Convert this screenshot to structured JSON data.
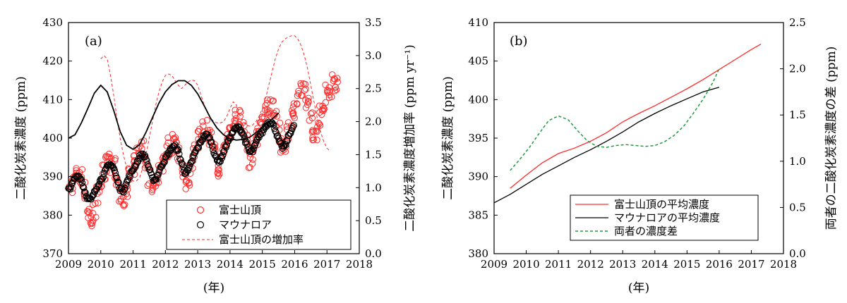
{
  "colors": {
    "fuji": "#ff2a2a",
    "mauna": "#000000",
    "diff": "#1e9a3c"
  },
  "chart_data": [
    {
      "type": "scatter",
      "panel_label": "(a)",
      "xlabel": "(年)",
      "ylabel": "二酸化炭素濃度 (ppm)",
      "ylabel2": "二酸化炭素濃度増加率 (ppm yr⁻¹)",
      "xlim": [
        2009,
        2018
      ],
      "ylim": [
        370,
        430
      ],
      "ylim2": [
        0,
        3.5
      ],
      "xticks": [
        "2009",
        "2010",
        "2011",
        "2012",
        "2013",
        "2014",
        "2015",
        "2016",
        "2017",
        "2018"
      ],
      "yticks": [
        "370",
        "380",
        "390",
        "400",
        "410",
        "420",
        "430"
      ],
      "yticks2": [
        "0.0",
        "0.5",
        "1.0",
        "1.5",
        "2.0",
        "2.5",
        "3.0",
        "3.5"
      ],
      "legend_position": "bottom-right",
      "series": [
        {
          "name": "富士山頂",
          "marker": "open-circle",
          "axis": "left",
          "x": [
            2009.0,
            2009.1,
            2009.2,
            2009.3,
            2009.4,
            2009.5,
            2009.6,
            2009.7,
            2009.8,
            2009.9,
            2010.0,
            2010.1,
            2010.2,
            2010.3,
            2010.4,
            2010.5,
            2010.6,
            2010.7,
            2010.8,
            2010.9,
            2011.0,
            2011.1,
            2011.2,
            2011.3,
            2011.4,
            2011.5,
            2011.6,
            2011.7,
            2011.8,
            2011.9,
            2012.0,
            2012.1,
            2012.2,
            2012.3,
            2012.4,
            2012.5,
            2012.6,
            2012.7,
            2012.8,
            2012.9,
            2013.0,
            2013.1,
            2013.2,
            2013.3,
            2013.4,
            2013.5,
            2013.6,
            2013.7,
            2013.8,
            2013.9,
            2014.0,
            2014.1,
            2014.2,
            2014.3,
            2014.4,
            2014.5,
            2014.6,
            2014.7,
            2014.8,
            2014.9,
            2015.0,
            2015.1,
            2015.2,
            2015.3,
            2015.4,
            2015.5,
            2015.6,
            2015.7,
            2015.8,
            2015.9,
            2016.0,
            2016.1,
            2016.2,
            2016.3,
            2016.4,
            2016.5,
            2016.6,
            2016.7,
            2016.8,
            2016.9,
            2017.0,
            2017.1,
            2017.2,
            2017.3
          ],
          "y": [
            387.2,
            388.3,
            389.9,
            390.8,
            389.8,
            386.2,
            380.8,
            378.6,
            381.0,
            385.1,
            388.8,
            390.8,
            392.8,
            393.6,
            392.2,
            388.4,
            384.6,
            384.4,
            387.4,
            390.6,
            393.2,
            395.0,
            396.4,
            396.7,
            394.6,
            390.4,
            386.6,
            387.6,
            390.8,
            393.6,
            396.2,
            397.8,
            398.8,
            398.6,
            396.2,
            392.4,
            389.0,
            390.2,
            393.4,
            396.6,
            399.2,
            401.1,
            402.4,
            402.4,
            400.1,
            395.8,
            392.0,
            393.3,
            396.6,
            399.5,
            402.0,
            403.8,
            405.4,
            405.2,
            402.8,
            398.6,
            394.9,
            396.0,
            399.3,
            402.2,
            404.8,
            406.6,
            408.1,
            408.2,
            405.8,
            401.2,
            397.2,
            398.7,
            402.3,
            405.3,
            408.0,
            410.2,
            411.6,
            411.6,
            409.0,
            404.3,
            400.6,
            402.2,
            405.8,
            408.8,
            411.4,
            413.1,
            414.2,
            413.8
          ]
        },
        {
          "name": "マウナロア",
          "marker": "open-circle",
          "axis": "left",
          "x": [
            2009.0,
            2009.1,
            2009.2,
            2009.3,
            2009.4,
            2009.5,
            2009.6,
            2009.7,
            2009.8,
            2009.9,
            2010.0,
            2010.1,
            2010.2,
            2010.3,
            2010.4,
            2010.5,
            2010.6,
            2010.7,
            2010.8,
            2010.9,
            2011.0,
            2011.1,
            2011.2,
            2011.3,
            2011.4,
            2011.5,
            2011.6,
            2011.7,
            2011.8,
            2011.9,
            2012.0,
            2012.1,
            2012.2,
            2012.3,
            2012.4,
            2012.5,
            2012.6,
            2012.7,
            2012.8,
            2012.9,
            2013.0,
            2013.1,
            2013.2,
            2013.3,
            2013.4,
            2013.5,
            2013.6,
            2013.7,
            2013.8,
            2013.9,
            2014.0,
            2014.1,
            2014.2,
            2014.3,
            2014.4,
            2014.5,
            2014.6,
            2014.7,
            2014.8,
            2014.9,
            2015.0,
            2015.1,
            2015.2,
            2015.3,
            2015.4,
            2015.5,
            2015.6,
            2015.7,
            2015.8,
            2015.9,
            2016.0
          ],
          "y": [
            386.6,
            387.8,
            389.6,
            390.4,
            389.2,
            386.4,
            384.2,
            384.0,
            385.8,
            387.8,
            389.2,
            390.6,
            392.5,
            393.4,
            392.2,
            389.4,
            386.8,
            386.4,
            388.4,
            390.4,
            391.8,
            393.4,
            395.1,
            395.8,
            394.7,
            391.9,
            389.4,
            389.2,
            391.2,
            393.2,
            394.6,
            396.2,
            397.6,
            397.8,
            396.5,
            393.6,
            391.2,
            391.4,
            393.6,
            395.9,
            397.5,
            399.2,
            400.6,
            400.8,
            399.4,
            396.6,
            394.1,
            394.2,
            396.3,
            398.5,
            400.1,
            401.8,
            402.7,
            402.5,
            401.1,
            398.6,
            396.4,
            396.6,
            398.6,
            400.6,
            401.6,
            403.2,
            404.2,
            404.0,
            402.3,
            399.6,
            397.6,
            397.9,
            400.2,
            402.2,
            403.2
          ]
        },
        {
          "name": "富士山頂の増加率",
          "line": "dashed",
          "axis": "right",
          "x": [
            2010.0,
            2010.1,
            2010.2,
            2010.3,
            2010.4,
            2010.5,
            2010.6,
            2010.7,
            2010.8,
            2010.9,
            2011.0,
            2011.1,
            2011.2,
            2011.3,
            2011.4,
            2011.5,
            2011.6,
            2011.7,
            2011.8,
            2011.9,
            2012.0,
            2012.1,
            2012.2,
            2012.3,
            2012.4,
            2012.5,
            2012.6,
            2012.7,
            2012.8,
            2012.9,
            2013.0,
            2013.1,
            2013.2,
            2013.3,
            2013.4,
            2013.5,
            2013.6,
            2013.7,
            2013.8,
            2013.9,
            2014.0,
            2014.1,
            2014.2,
            2014.3,
            2014.4,
            2014.5,
            2014.6,
            2014.7,
            2014.8,
            2014.9,
            2015.0,
            2015.1,
            2015.2,
            2015.3,
            2015.4,
            2015.5,
            2015.6,
            2015.7,
            2015.8,
            2015.9,
            2016.0,
            2016.1,
            2016.2,
            2016.3,
            2016.4,
            2016.5,
            2016.6,
            2016.7,
            2016.8,
            2016.9,
            2017.0,
            2017.1
          ],
          "y": [
            2.95,
            3.0,
            2.95,
            2.7,
            2.4,
            2.05,
            1.75,
            1.5,
            1.3,
            1.15,
            1.1,
            1.1,
            1.15,
            1.3,
            1.5,
            1.75,
            2.0,
            2.25,
            2.45,
            2.6,
            2.7,
            2.72,
            2.7,
            2.62,
            2.55,
            2.5,
            2.55,
            2.6,
            2.63,
            2.62,
            2.55,
            2.4,
            2.25,
            2.15,
            2.05,
            2.0,
            1.98,
            1.98,
            2.0,
            2.08,
            2.2,
            2.3,
            2.25,
            2.1,
            2.0,
            1.95,
            1.93,
            1.95,
            2.0,
            2.08,
            2.2,
            2.35,
            2.55,
            2.75,
            2.95,
            3.1,
            3.2,
            3.25,
            3.28,
            3.3,
            3.3,
            3.25,
            3.15,
            3.0,
            2.8,
            2.55,
            2.3,
            2.05,
            1.85,
            1.7,
            1.6,
            1.55
          ]
        },
        {
          "name": "",
          "line": "solid",
          "axis": "right",
          "x": [
            2009.0,
            2009.2,
            2009.4,
            2009.6,
            2009.8,
            2010.0,
            2010.2,
            2010.4,
            2010.6,
            2010.8,
            2011.0,
            2011.2,
            2011.4,
            2011.6,
            2011.8,
            2012.0,
            2012.2,
            2012.4,
            2012.6,
            2012.8,
            2013.0,
            2013.2,
            2013.4,
            2013.6,
            2013.8,
            2014.0,
            2014.2,
            2014.4,
            2014.6,
            2014.8,
            2015.0,
            2015.2,
            2015.4,
            2015.5
          ],
          "y": [
            1.75,
            1.8,
            1.98,
            2.2,
            2.43,
            2.55,
            2.45,
            2.17,
            1.85,
            1.64,
            1.58,
            1.65,
            1.84,
            2.06,
            2.28,
            2.45,
            2.56,
            2.62,
            2.62,
            2.55,
            2.42,
            2.24,
            2.05,
            1.9,
            1.8,
            1.74,
            1.72,
            1.73,
            1.76,
            1.83,
            1.91,
            2.0,
            2.08,
            2.13
          ]
        }
      ]
    },
    {
      "type": "line",
      "panel_label": "(b)",
      "xlabel": "(年)",
      "ylabel": "二酸化炭素濃度 (ppm)",
      "ylabel2": "両者の二酸化炭素濃度の差 (ppm)",
      "xlim": [
        2009,
        2018
      ],
      "ylim": [
        380,
        410
      ],
      "ylim2": [
        0,
        2.5
      ],
      "xticks": [
        "2009",
        "2010",
        "2011",
        "2012",
        "2013",
        "2014",
        "2015",
        "2016",
        "2017",
        "2018"
      ],
      "yticks": [
        "380",
        "385",
        "390",
        "395",
        "400",
        "405",
        "410"
      ],
      "yticks2": [
        "0.0",
        "0.5",
        "1.0",
        "1.5",
        "2.0",
        "2.5"
      ],
      "legend_position": "bottom-right",
      "series": [
        {
          "name": "富士山頂の平均濃度",
          "line": "solid",
          "axis": "left",
          "x": [
            2009.5,
            2010.0,
            2010.5,
            2011.0,
            2011.5,
            2012.0,
            2012.5,
            2013.0,
            2013.5,
            2014.0,
            2014.5,
            2015.0,
            2015.5,
            2016.0,
            2016.5,
            2017.0,
            2017.3
          ],
          "y": [
            388.5,
            390.2,
            391.8,
            393.0,
            393.7,
            394.6,
            395.7,
            397.1,
            398.2,
            399.2,
            400.3,
            401.4,
            402.6,
            403.9,
            405.2,
            406.5,
            407.2
          ]
        },
        {
          "name": "マウナロアの平均濃度",
          "line": "solid",
          "axis": "left",
          "x": [
            2009.0,
            2009.5,
            2010.0,
            2010.5,
            2011.0,
            2011.5,
            2012.0,
            2012.5,
            2013.0,
            2013.5,
            2014.0,
            2014.5,
            2015.0,
            2015.5,
            2016.0
          ],
          "y": [
            386.6,
            387.7,
            389.0,
            390.3,
            391.4,
            392.5,
            393.5,
            394.6,
            395.8,
            397.1,
            398.2,
            399.2,
            400.1,
            401.0,
            401.6
          ]
        },
        {
          "name": "両者の濃度差",
          "line": "dashed",
          "axis": "right",
          "x": [
            2009.5,
            2009.8,
            2010.1,
            2010.4,
            2010.7,
            2011.0,
            2011.3,
            2011.6,
            2011.9,
            2012.2,
            2012.5,
            2012.8,
            2013.1,
            2013.4,
            2013.7,
            2014.0,
            2014.3,
            2014.6,
            2014.9,
            2015.2,
            2015.5,
            2015.8,
            2016.0
          ],
          "y": [
            0.9,
            1.02,
            1.15,
            1.3,
            1.44,
            1.49,
            1.45,
            1.33,
            1.22,
            1.16,
            1.15,
            1.17,
            1.18,
            1.17,
            1.16,
            1.17,
            1.21,
            1.28,
            1.38,
            1.52,
            1.67,
            1.85,
            2.0
          ]
        }
      ]
    }
  ]
}
